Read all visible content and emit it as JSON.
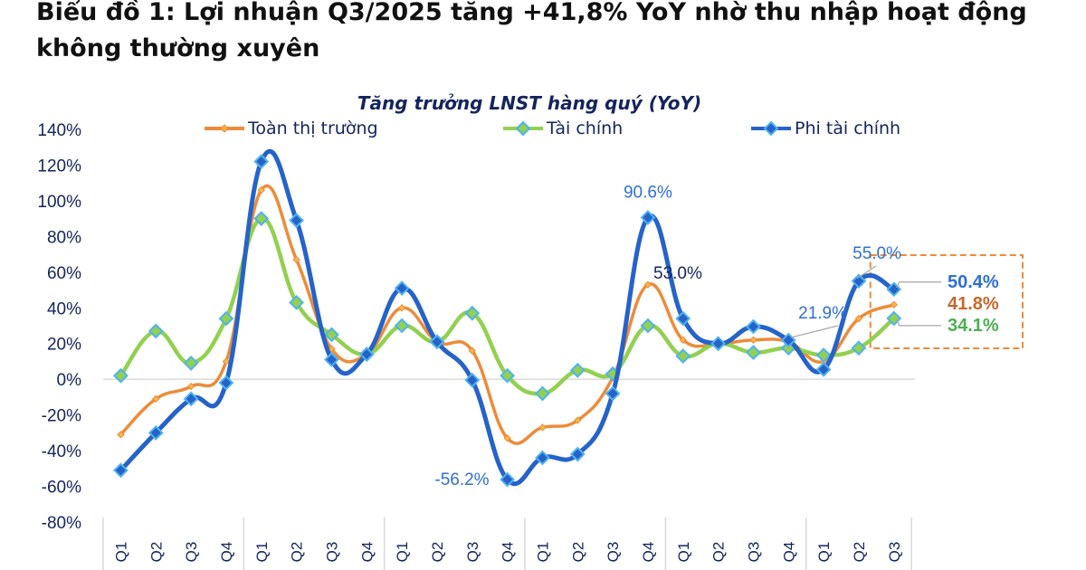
{
  "headline": {
    "line1": "Biểu đồ 1: Lợi nhuận Q3/2025 tăng +41,8% YoY nhờ thu nhập hoạt động",
    "line2": "không thường xuyên"
  },
  "chart_data": {
    "type": "line",
    "title": "Tăng trưởng LNST hàng quý (YoY)",
    "xlabel": "",
    "ylabel": "",
    "ylim": [
      -80,
      140
    ],
    "y_ticks": [
      "140%",
      "120%",
      "100%",
      "80%",
      "60%",
      "40%",
      "20%",
      "0%",
      "-20%",
      "-40%",
      "-60%",
      "-80%"
    ],
    "y_tick_values": [
      140,
      120,
      100,
      80,
      60,
      40,
      20,
      0,
      -20,
      -40,
      -60,
      -80
    ],
    "grid": false,
    "legend_position": "top",
    "categories": [
      "Q1",
      "Q2",
      "Q3",
      "Q4",
      "Q1",
      "Q2",
      "Q3",
      "Q4",
      "Q1",
      "Q2",
      "Q3",
      "Q4",
      "Q1",
      "Q2",
      "Q3",
      "Q4",
      "Q1",
      "Q2",
      "Q3",
      "Q4",
      "Q1",
      "Q2",
      "Q3"
    ],
    "category_groups": 6,
    "series": [
      {
        "name": "Toàn thị trường",
        "color": "#ed8b3a",
        "marker": "small-diamond",
        "values": [
          -31,
          -11,
          -4,
          10,
          106,
          67,
          17,
          14,
          40,
          21,
          16,
          -33,
          -27,
          -23,
          1,
          53.0,
          22,
          20,
          22,
          21,
          10,
          34,
          41.8
        ]
      },
      {
        "name": "Tài chính",
        "color": "#92d050",
        "marker": "diamond",
        "values": [
          2,
          27,
          9,
          34,
          90,
          43,
          25,
          14,
          30,
          21,
          37,
          2,
          -8,
          5,
          3,
          30,
          13,
          20,
          15,
          17.5,
          13.5,
          17.5,
          34.1
        ]
      },
      {
        "name": "Phi tài chính",
        "color": "#2563c9",
        "marker": "diamond",
        "values": [
          -51,
          -30,
          -11,
          -2,
          122,
          89,
          11,
          14,
          51,
          21,
          -0.5,
          -56.2,
          -44,
          -42,
          -8,
          90.6,
          34,
          20,
          29.5,
          21.9,
          5.5,
          55.0,
          50.4
        ]
      }
    ],
    "annotations": [
      {
        "text": "90.6%",
        "series": "Phi tài chính",
        "index": 15,
        "color": "#2e6fd6"
      },
      {
        "text": "53.0%",
        "series": "Toàn thị trường",
        "index": 15,
        "color": "#14245e"
      },
      {
        "text": "-56.2%",
        "series": "Phi tài chính",
        "index": 11,
        "color": "#2e6fd6"
      },
      {
        "text": "21.9%",
        "series": "Phi tài chính",
        "index": 19,
        "color": "#2e6fd6"
      },
      {
        "text": "55.0%",
        "series": "Phi tài chính",
        "index": 21,
        "color": "#2e6fd6"
      },
      {
        "text": "50.4%",
        "series": "Phi tài chính",
        "index": 22,
        "color": "#2e6fd6",
        "bold": true
      },
      {
        "text": "41.8%",
        "series": "Toàn thị trường",
        "index": 22,
        "color": "#c5682a",
        "bold": true
      },
      {
        "text": "34.1%",
        "series": "Tài chính",
        "index": 22,
        "color": "#4caf50",
        "bold": true
      }
    ],
    "highlight_box": {
      "style": "dashed",
      "color": "#ed8b3a",
      "covers_index": 22
    }
  }
}
